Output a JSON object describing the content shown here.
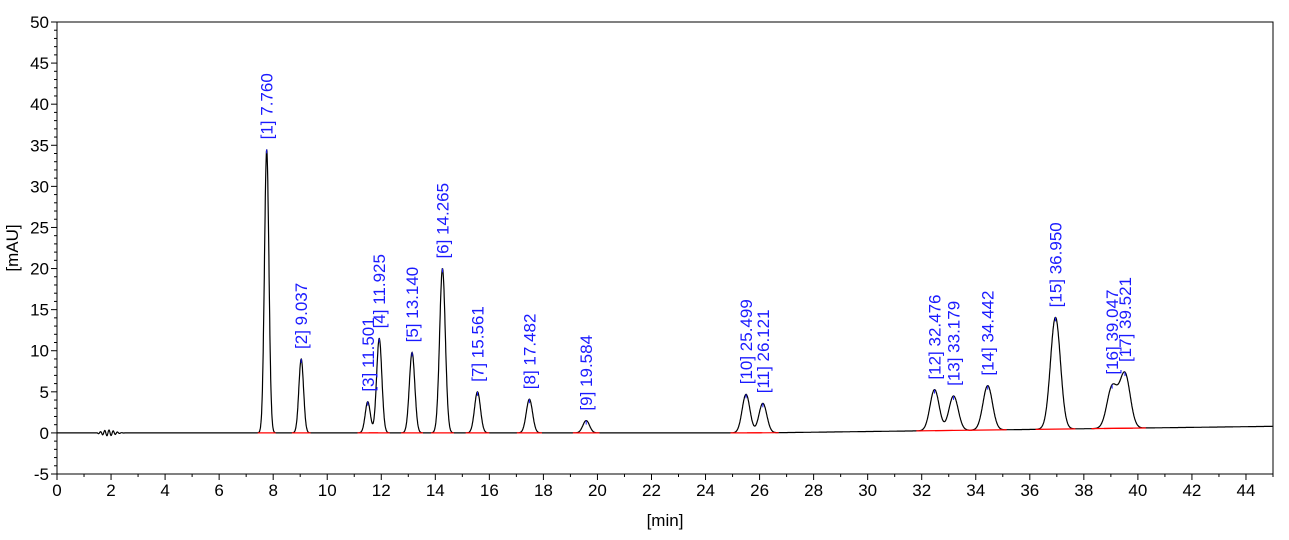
{
  "chart_data": {
    "type": "line",
    "title": "",
    "xlabel": "[min]",
    "ylabel": "[mAU]",
    "xlim": [
      0,
      45
    ],
    "ylim": [
      -5,
      50
    ],
    "xticks": [
      0,
      2,
      4,
      6,
      8,
      10,
      12,
      14,
      16,
      18,
      20,
      22,
      24,
      26,
      28,
      30,
      32,
      34,
      36,
      38,
      40,
      42,
      44
    ],
    "yticks": [
      -5,
      0,
      5,
      10,
      15,
      20,
      25,
      30,
      35,
      40,
      45,
      50
    ],
    "grid": false,
    "peaks": [
      {
        "id": "[1]",
        "rt": "7.760",
        "height": 34.5
      },
      {
        "id": "[2]",
        "rt": "9.037",
        "height": 9.0
      },
      {
        "id": "[3]",
        "rt": "11.501",
        "height": 3.8
      },
      {
        "id": "[4]",
        "rt": "11.925",
        "height": 11.5
      },
      {
        "id": "[5]",
        "rt": "13.140",
        "height": 9.8
      },
      {
        "id": "[6]",
        "rt": "14.265",
        "height": 20.0
      },
      {
        "id": "[7]",
        "rt": "15.561",
        "height": 5.0
      },
      {
        "id": "[8]",
        "rt": "17.482",
        "height": 4.1
      },
      {
        "id": "[9]",
        "rt": "19.584",
        "height": 1.5
      },
      {
        "id": "[10]",
        "rt": "25.499",
        "height": 4.7
      },
      {
        "id": "[11]",
        "rt": "26.121",
        "height": 3.6
      },
      {
        "id": "[12]",
        "rt": "32.476",
        "height": 5.0
      },
      {
        "id": "[13]",
        "rt": "33.179",
        "height": 4.2
      },
      {
        "id": "[14]",
        "rt": "34.442",
        "height": 5.4
      },
      {
        "id": "[15]",
        "rt": "36.950",
        "height": 13.6
      },
      {
        "id": "[16]",
        "rt": "39.047",
        "height": 5.0
      },
      {
        "id": "[17]",
        "rt": "39.521",
        "height": 6.6
      }
    ],
    "baseline_drift_end": 0.8,
    "colors": {
      "trace": "#000000",
      "labels": "#1a1aff",
      "integration_baseline": "#ff0000"
    }
  }
}
